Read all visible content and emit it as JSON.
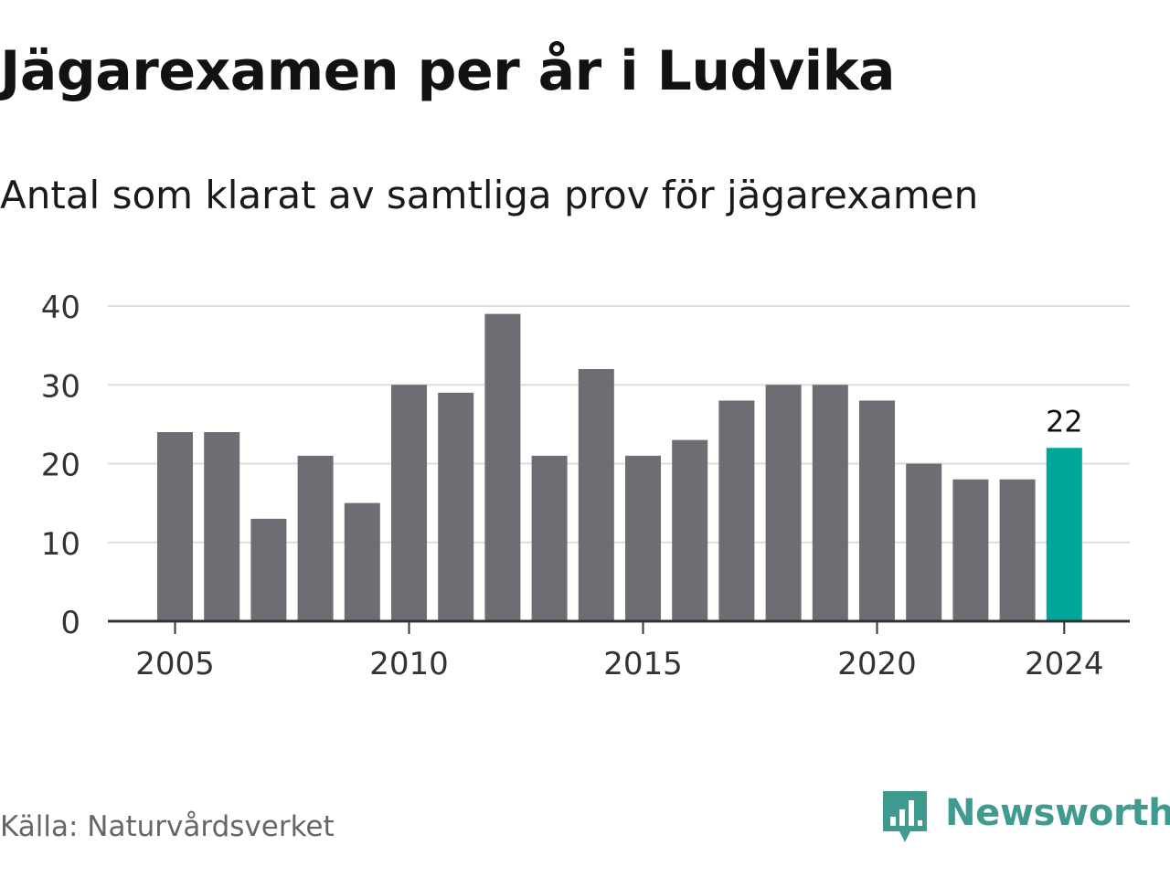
{
  "title": "Jägarexamen per år i Ludvika",
  "subtitle": "Antal som klarat av samtliga prov för jägarexamen",
  "source": "Källa: Naturvårdsverket",
  "brand": {
    "name": "Newsworthy",
    "icon": "newsworthy-logo-icon"
  },
  "colors": {
    "bar": "#6e6d73",
    "highlight": "#00a699",
    "gridline": "#dddddd",
    "axis": "#333333",
    "brand": "#3f9b8f"
  },
  "chart_data": {
    "type": "bar",
    "x": [
      2005,
      2006,
      2007,
      2008,
      2009,
      2010,
      2011,
      2012,
      2013,
      2014,
      2015,
      2016,
      2017,
      2018,
      2019,
      2020,
      2021,
      2022,
      2023,
      2024
    ],
    "values": [
      24,
      24,
      13,
      21,
      15,
      30,
      29,
      39,
      21,
      32,
      21,
      23,
      28,
      30,
      30,
      28,
      20,
      18,
      18,
      22
    ],
    "highlight": {
      "x": 2024,
      "label": "22"
    },
    "x_ticks": [
      "2005",
      "2010",
      "2015",
      "2020",
      "2024"
    ],
    "y_ticks": [
      "0",
      "10",
      "20",
      "30",
      "40"
    ],
    "ylim": [
      0,
      40
    ],
    "grid": "horizontal",
    "legend": "none"
  }
}
